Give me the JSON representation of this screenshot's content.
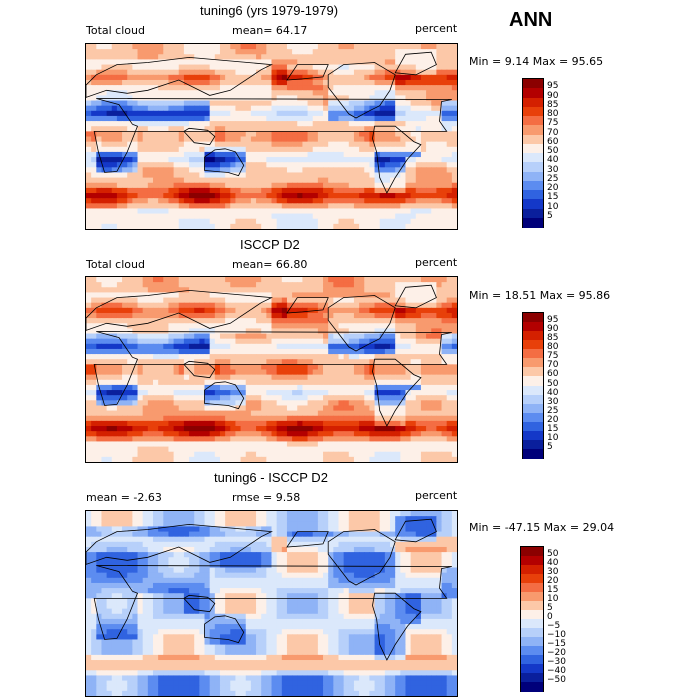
{
  "season": "ANN",
  "panels": [
    {
      "title": "tuning6 (yrs 1979-1979)",
      "left_label": "Total cloud",
      "center_label": "mean=  64.17",
      "units": "percent",
      "minmax": "Min =   9.14 Max =  95.65",
      "colorbar_labels": [
        "95",
        "90",
        "85",
        "80",
        "75",
        "70",
        "60",
        "50",
        "40",
        "30",
        "25",
        "20",
        "15",
        "10",
        "5"
      ],
      "colors": [
        "#8b0000",
        "#b30000",
        "#d42000",
        "#e8400a",
        "#f46d43",
        "#f89a6e",
        "#fcc8a8",
        "#fdf0e8",
        "#dbe8fb",
        "#b7d0fa",
        "#8fb3f6",
        "#5c8cf0",
        "#3063e0",
        "#1438c8",
        "#0a1f9c",
        "#00007a"
      ],
      "field_type": "model"
    },
    {
      "title": "ISCCP D2",
      "left_label": "Total cloud",
      "center_label": "mean=  66.80",
      "units": "percent",
      "minmax": "Min =  18.51 Max =  95.86",
      "colorbar_labels": [
        "95",
        "90",
        "85",
        "80",
        "75",
        "70",
        "60",
        "50",
        "40",
        "30",
        "25",
        "20",
        "15",
        "10",
        "5"
      ],
      "colors": [
        "#8b0000",
        "#b30000",
        "#d42000",
        "#e8400a",
        "#f46d43",
        "#f89a6e",
        "#fcc8a8",
        "#fdf0e8",
        "#dbe8fb",
        "#b7d0fa",
        "#8fb3f6",
        "#5c8cf0",
        "#3063e0",
        "#1438c8",
        "#0a1f9c",
        "#00007a"
      ],
      "field_type": "obs"
    },
    {
      "title": "tuning6 - ISCCP D2",
      "left_label": "mean =   -2.63",
      "center_label": "rmse =   9.58",
      "units": "percent",
      "minmax": "Min = -47.15 Max =  29.04",
      "colorbar_labels": [
        "50",
        "40",
        "30",
        "20",
        "15",
        "10",
        "5",
        "0",
        "−5",
        "−10",
        "−15",
        "−20",
        "−30",
        "−40",
        "−50"
      ],
      "colors": [
        "#8b0000",
        "#b30000",
        "#d42000",
        "#e8400a",
        "#f46d43",
        "#f89a6e",
        "#fcc8a8",
        "#fdf0e8",
        "#dbe8fb",
        "#b7d0fa",
        "#8fb3f6",
        "#5c8cf0",
        "#3063e0",
        "#1438c8",
        "#0a1f9c",
        "#00007a"
      ],
      "field_type": "diff"
    }
  ]
}
